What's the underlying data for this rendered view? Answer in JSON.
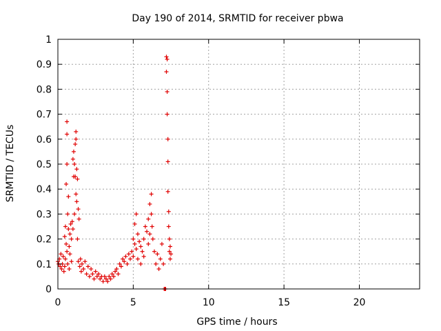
{
  "chart_data": {
    "type": "scatter",
    "title": "Day 190 of 2014, SRMTID for receiver pbwa",
    "xlabel": "GPS time / hours",
    "ylabel": "SRMTID / TECUs",
    "xlim": [
      0,
      24
    ],
    "ylim": [
      0,
      1
    ],
    "x_ticks": [
      0,
      5,
      10,
      15,
      20
    ],
    "x_tick_labels": [
      "0",
      "5",
      "10",
      "15",
      "20"
    ],
    "y_ticks": [
      0,
      0.1,
      0.2,
      0.3,
      0.4,
      0.5,
      0.6,
      0.7,
      0.8,
      0.9,
      1
    ],
    "y_tick_labels": [
      "0",
      "0.1",
      "0.2",
      "0.3",
      "0.4",
      "0.5",
      "0.6",
      "0.7",
      "0.8",
      "0.9",
      "1"
    ],
    "grid": true,
    "marker": "+",
    "series": [
      {
        "name": "SRMTID",
        "color": "#e00000",
        "points": [
          [
            0.0,
            0.11
          ],
          [
            0.05,
            0.1
          ],
          [
            0.1,
            0.12
          ],
          [
            0.15,
            0.09
          ],
          [
            0.2,
            0.14
          ],
          [
            0.25,
            0.08
          ],
          [
            0.3,
            0.1
          ],
          [
            0.35,
            0.13
          ],
          [
            0.4,
            0.07
          ],
          [
            0.45,
            0.21
          ],
          [
            0.45,
            0.09
          ],
          [
            0.5,
            0.25
          ],
          [
            0.5,
            0.12
          ],
          [
            0.55,
            0.42
          ],
          [
            0.55,
            0.18
          ],
          [
            0.6,
            0.5
          ],
          [
            0.6,
            0.62
          ],
          [
            0.6,
            0.15
          ],
          [
            0.6,
            0.67
          ],
          [
            0.65,
            0.3
          ],
          [
            0.65,
            0.1
          ],
          [
            0.7,
            0.24
          ],
          [
            0.7,
            0.37
          ],
          [
            0.75,
            0.17
          ],
          [
            0.75,
            0.08
          ],
          [
            0.8,
            0.22
          ],
          [
            0.8,
            0.14
          ],
          [
            0.85,
            0.26
          ],
          [
            0.9,
            0.2
          ],
          [
            0.9,
            0.11
          ],
          [
            0.95,
            0.27
          ],
          [
            1.0,
            0.24
          ],
          [
            1.0,
            0.52
          ],
          [
            1.05,
            0.55
          ],
          [
            1.05,
            0.45
          ],
          [
            1.1,
            0.5
          ],
          [
            1.1,
            0.3
          ],
          [
            1.15,
            0.58
          ],
          [
            1.15,
            0.45
          ],
          [
            1.2,
            0.63
          ],
          [
            1.2,
            0.6
          ],
          [
            1.2,
            0.38
          ],
          [
            1.25,
            0.48
          ],
          [
            1.25,
            0.35
          ],
          [
            1.3,
            0.44
          ],
          [
            1.3,
            0.2
          ],
          [
            1.35,
            0.32
          ],
          [
            1.35,
            0.11
          ],
          [
            1.4,
            0.28
          ],
          [
            1.45,
            0.09
          ],
          [
            1.5,
            0.12
          ],
          [
            1.55,
            0.07
          ],
          [
            1.6,
            0.1
          ],
          [
            1.7,
            0.08
          ],
          [
            1.8,
            0.11
          ],
          [
            1.9,
            0.06
          ],
          [
            2.0,
            0.09
          ],
          [
            2.1,
            0.05
          ],
          [
            2.2,
            0.08
          ],
          [
            2.3,
            0.06
          ],
          [
            2.4,
            0.04
          ],
          [
            2.5,
            0.07
          ],
          [
            2.6,
            0.05
          ],
          [
            2.7,
            0.06
          ],
          [
            2.8,
            0.04
          ],
          [
            2.9,
            0.05
          ],
          [
            3.0,
            0.03
          ],
          [
            3.1,
            0.05
          ],
          [
            3.2,
            0.04
          ],
          [
            3.3,
            0.03
          ],
          [
            3.4,
            0.05
          ],
          [
            3.5,
            0.04
          ],
          [
            3.6,
            0.06
          ],
          [
            3.7,
            0.05
          ],
          [
            3.8,
            0.07
          ],
          [
            3.9,
            0.08
          ],
          [
            4.0,
            0.06
          ],
          [
            4.1,
            0.1
          ],
          [
            4.2,
            0.09
          ],
          [
            4.3,
            0.12
          ],
          [
            4.4,
            0.11
          ],
          [
            4.5,
            0.13
          ],
          [
            4.6,
            0.1
          ],
          [
            4.7,
            0.14
          ],
          [
            4.8,
            0.12
          ],
          [
            4.9,
            0.15
          ],
          [
            5.0,
            0.13
          ],
          [
            5.0,
            0.2
          ],
          [
            5.1,
            0.18
          ],
          [
            5.1,
            0.26
          ],
          [
            5.2,
            0.3
          ],
          [
            5.2,
            0.16
          ],
          [
            5.3,
            0.22
          ],
          [
            5.3,
            0.12
          ],
          [
            5.4,
            0.19
          ],
          [
            5.5,
            0.17
          ],
          [
            5.5,
            0.1
          ],
          [
            5.6,
            0.15
          ],
          [
            5.7,
            0.2
          ],
          [
            5.7,
            0.13
          ],
          [
            5.8,
            0.25
          ],
          [
            5.9,
            0.23
          ],
          [
            6.0,
            0.28
          ],
          [
            6.0,
            0.18
          ],
          [
            6.1,
            0.34
          ],
          [
            6.1,
            0.22
          ],
          [
            6.2,
            0.38
          ],
          [
            6.2,
            0.3
          ],
          [
            6.25,
            0.25
          ],
          [
            6.3,
            0.2
          ],
          [
            6.4,
            0.15
          ],
          [
            6.5,
            0.1
          ],
          [
            6.6,
            0.14
          ],
          [
            6.7,
            0.08
          ],
          [
            6.8,
            0.12
          ],
          [
            6.9,
            0.18
          ],
          [
            7.0,
            0.1
          ],
          [
            7.05,
            0.0
          ],
          [
            7.1,
            0.0
          ],
          [
            7.15,
            0.0
          ],
          [
            7.2,
            0.93
          ],
          [
            7.2,
            0.87
          ],
          [
            7.25,
            0.92
          ],
          [
            7.25,
            0.79
          ],
          [
            7.25,
            0.7
          ],
          [
            7.3,
            0.6
          ],
          [
            7.3,
            0.51
          ],
          [
            7.3,
            0.39
          ],
          [
            7.35,
            0.31
          ],
          [
            7.35,
            0.25
          ],
          [
            7.4,
            0.2
          ],
          [
            7.4,
            0.15
          ],
          [
            7.45,
            0.17
          ],
          [
            7.45,
            0.12
          ],
          [
            7.5,
            0.14
          ]
        ]
      }
    ]
  }
}
